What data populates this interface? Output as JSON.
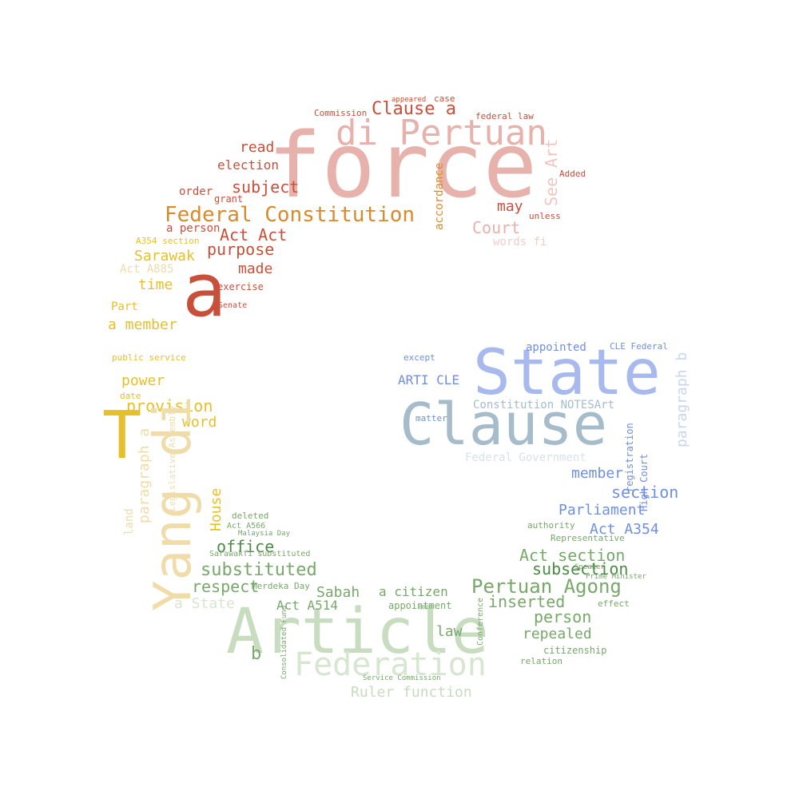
{
  "palette": {
    "red": "#c8503a",
    "pink": "#e6b2ab",
    "orange": "#d98a2b",
    "yellow": "#e5c02c",
    "cream": "#efdca9",
    "blue": "#6f8fe0",
    "slate": "#a6bccb",
    "green": "#78a86a",
    "lightgreen": "#c8dcc0"
  },
  "words": [
    {
      "text": "force",
      "color": "#e6b2ab"
    },
    {
      "text": "di Pertuan",
      "color": "#e6b2ab"
    },
    {
      "text": "Clause a",
      "color": "#c8503a"
    },
    {
      "text": "Federal Constitution",
      "color": "#d98a2b"
    },
    {
      "text": "subject",
      "color": "#c8503a"
    },
    {
      "text": "election",
      "color": "#c8503a"
    },
    {
      "text": "read",
      "color": "#c8503a"
    },
    {
      "text": "order",
      "color": "#c8503a"
    },
    {
      "text": "grant",
      "color": "#c8503a"
    },
    {
      "text": "Act Act",
      "color": "#c8503a"
    },
    {
      "text": "a person",
      "color": "#c8503a"
    },
    {
      "text": "purpose",
      "color": "#c8503a"
    },
    {
      "text": "made",
      "color": "#c8503a"
    },
    {
      "text": "Court",
      "color": "#e6b2ab"
    },
    {
      "text": "may",
      "color": "#c8503a"
    },
    {
      "text": "accordance",
      "color": "#d98a2b"
    },
    {
      "text": "See Art",
      "color": "#efc5bf"
    },
    {
      "text": "words fi",
      "color": "#f0cfca"
    },
    {
      "text": "Commission",
      "color": "#c8503a"
    },
    {
      "text": "appeared",
      "color": "#c8503a"
    },
    {
      "text": "case",
      "color": "#c8503a"
    },
    {
      "text": "federal law",
      "color": "#c8503a"
    },
    {
      "text": "Added",
      "color": "#c8503a"
    },
    {
      "text": "unless",
      "color": "#c8503a"
    },
    {
      "text": "a",
      "color": "#c8503a"
    },
    {
      "text": "Sarawak",
      "color": "#e5c02c"
    },
    {
      "text": "Act A885",
      "color": "#efdca9"
    },
    {
      "text": "time",
      "color": "#e5c02c"
    },
    {
      "text": "a member",
      "color": "#e5c02c"
    },
    {
      "text": "Part",
      "color": "#e5c02c"
    },
    {
      "text": "power",
      "color": "#e5c02c"
    },
    {
      "text": "provision",
      "color": "#e5c02c"
    },
    {
      "text": "word",
      "color": "#e5c02c"
    },
    {
      "text": "T",
      "color": "#e5c02c"
    },
    {
      "text": "Yang di",
      "color": "#efdca9"
    },
    {
      "text": "paragraph a",
      "color": "#efdca9"
    },
    {
      "text": "land",
      "color": "#efdca9"
    },
    {
      "text": "House",
      "color": "#e5c02c"
    },
    {
      "text": "A354 section",
      "color": "#e5c02c"
    },
    {
      "text": "public service",
      "color": "#e5c02c"
    },
    {
      "text": "date",
      "color": "#e5c02c"
    },
    {
      "text": "Legislative Assembly",
      "color": "#efdca9"
    },
    {
      "text": "exercise",
      "color": "#c8503a"
    },
    {
      "text": "Senate",
      "color": "#c8503a"
    },
    {
      "text": "State",
      "color": "#a8b9ee"
    },
    {
      "text": "Clause",
      "color": "#a6bccb"
    },
    {
      "text": "appointed",
      "color": "#6f8fe0"
    },
    {
      "text": "ARTI CLE",
      "color": "#6f8fe0"
    },
    {
      "text": "Constitution NOTESArt",
      "color": "#a6bccb"
    },
    {
      "text": "Federal Government",
      "color": "#d9e1ea"
    },
    {
      "text": "member",
      "color": "#6f8fe0"
    },
    {
      "text": "section",
      "color": "#6f8fe0"
    },
    {
      "text": "Parliament",
      "color": "#6f8fe0"
    },
    {
      "text": "Act A354",
      "color": "#6f8fe0"
    },
    {
      "text": "paragraph b",
      "color": "#c8d6f0"
    },
    {
      "text": "High Court",
      "color": "#6f8fe0"
    },
    {
      "text": "CLE Federal",
      "color": "#6f8fe0"
    },
    {
      "text": "matter",
      "color": "#6f8fe0"
    },
    {
      "text": "except",
      "color": "#6f8fe0"
    },
    {
      "text": "registration",
      "color": "#6f8fe0"
    },
    {
      "text": "Article",
      "color": "#c8dcc0"
    },
    {
      "text": "Federation",
      "color": "#d7e6d0"
    },
    {
      "text": "Pertuan Agong",
      "color": "#78a86a"
    },
    {
      "text": "Act section",
      "color": "#78a86a"
    },
    {
      "text": "subsection",
      "color": "#4e8a46"
    },
    {
      "text": "inserted",
      "color": "#78a86a"
    },
    {
      "text": "person",
      "color": "#78a86a"
    },
    {
      "text": "repealed",
      "color": "#78a86a"
    },
    {
      "text": "substituted",
      "color": "#78a86a"
    },
    {
      "text": "office",
      "color": "#4e8a46"
    },
    {
      "text": "respect",
      "color": "#78a86a"
    },
    {
      "text": "a State",
      "color": "#d7e6d0"
    },
    {
      "text": "Sabah",
      "color": "#78a86a"
    },
    {
      "text": "a citizen",
      "color": "#78a86a"
    },
    {
      "text": "law",
      "color": "#78a86a"
    },
    {
      "text": "Ruler function",
      "color": "#c8dcc0"
    },
    {
      "text": "Act A514",
      "color": "#78a86a"
    },
    {
      "text": "b",
      "color": "#78a86a"
    },
    {
      "text": "appointment",
      "color": "#78a86a"
    },
    {
      "text": "Merdeka Day",
      "color": "#78a86a"
    },
    {
      "text": "citizenship",
      "color": "#78a86a"
    },
    {
      "text": "relation",
      "color": "#78a86a"
    },
    {
      "text": "effect",
      "color": "#78a86a"
    },
    {
      "text": "Representative",
      "color": "#78a86a"
    },
    {
      "text": "authority",
      "color": "#78a86a"
    },
    {
      "text": "deleted",
      "color": "#78a86a"
    },
    {
      "text": "Act A566",
      "color": "#78a86a"
    },
    {
      "text": "Malaysia Day",
      "color": "#78a86a"
    },
    {
      "text": "Sarawakfi substituted",
      "color": "#78a86a"
    },
    {
      "text": "Prime Minister",
      "color": "#78a86a"
    },
    {
      "text": "Speaker",
      "color": "#78a86a"
    },
    {
      "text": "Conference",
      "color": "#78a86a"
    },
    {
      "text": "Service Commission",
      "color": "#78a86a"
    },
    {
      "text": "Consolidated Fund",
      "color": "#78a86a"
    }
  ]
}
